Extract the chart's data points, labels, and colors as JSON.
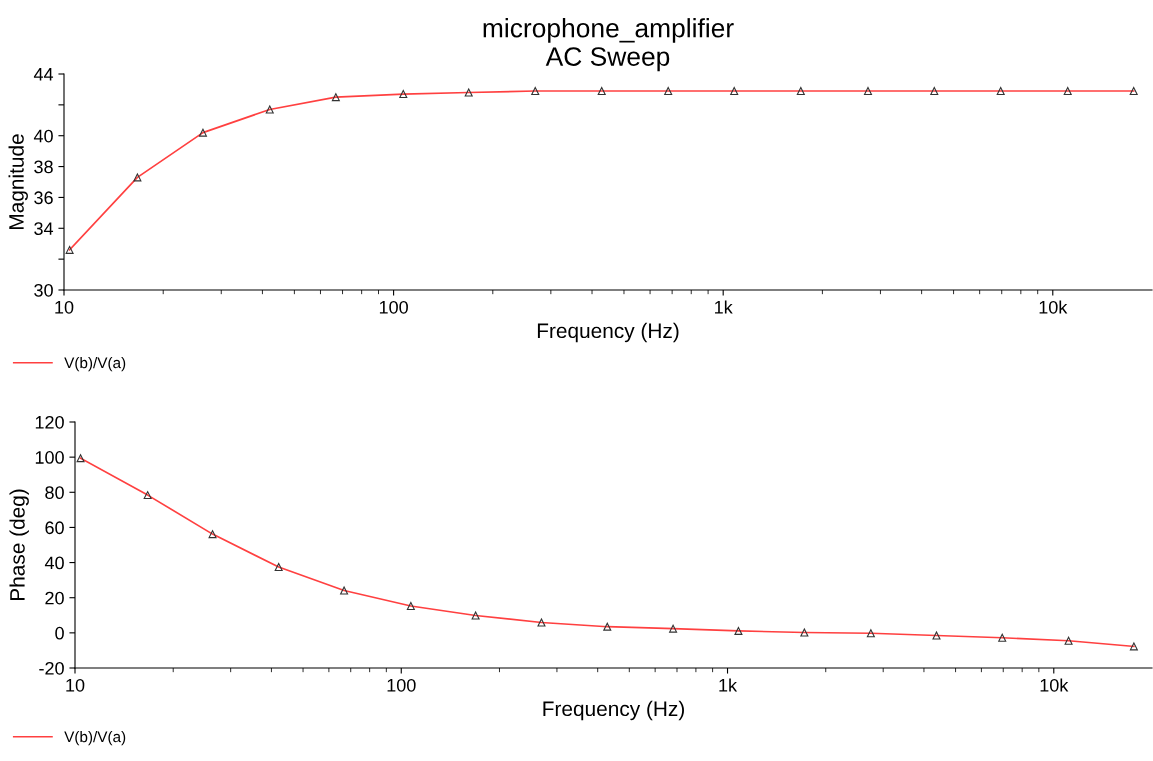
{
  "chart_data": [
    {
      "type": "line",
      "title": "microphone_amplifier",
      "subtitle": "AC Sweep",
      "xlabel": "Frequency (Hz)",
      "ylabel": "Magnitude",
      "log": "x",
      "grid": false,
      "legend": "bottom left",
      "marker": "triangle",
      "line_style": "solid",
      "x": [
        10.4,
        16.7,
        26.4,
        42.1,
        66.8,
        107,
        169,
        269,
        428,
        681,
        1080,
        1720,
        2750,
        4370,
        6950,
        11100,
        17600
      ],
      "xlim": [
        10,
        20000
      ],
      "xticks": [
        {
          "value": 10,
          "label": "10"
        },
        {
          "value": 100,
          "label": "100"
        },
        {
          "value": 1000,
          "label": "1k"
        },
        {
          "value": 10000,
          "label": "10k"
        }
      ],
      "ylim": [
        30,
        44
      ],
      "yticks": [
        30,
        {
          "value": 32,
          "label": null
        },
        34,
        36,
        38,
        40,
        {
          "value": 42,
          "label": null
        },
        44
      ],
      "series": [
        {
          "name": "V(b)/V(a)",
          "color": "#ff4040",
          "values": [
            32.6,
            37.3,
            40.2,
            41.7,
            42.5,
            42.7,
            42.8,
            42.9,
            42.9,
            42.9,
            42.9,
            42.9,
            42.9,
            42.9,
            42.9,
            42.9,
            42.9
          ]
        }
      ]
    },
    {
      "type": "line",
      "xlabel": "Frequency (Hz)",
      "ylabel": "Phase (deg)",
      "log": "x",
      "grid": false,
      "legend": "bottom left",
      "marker": "triangle",
      "line_style": "solid",
      "x": [
        10.4,
        16.7,
        26.4,
        42.1,
        66.8,
        107,
        169,
        269,
        428,
        681,
        1080,
        1720,
        2750,
        4370,
        6950,
        11100,
        17600
      ],
      "xlim": [
        10,
        20000
      ],
      "xticks": [
        {
          "value": 10,
          "label": "10"
        },
        {
          "value": 100,
          "label": "100"
        },
        {
          "value": 1000,
          "label": "1k"
        },
        {
          "value": 10000,
          "label": "10k"
        }
      ],
      "ylim": [
        -20,
        120
      ],
      "yticks": [
        -20,
        0,
        20,
        40,
        60,
        80,
        100,
        120
      ],
      "series": [
        {
          "name": "V(b)/V(a)",
          "color": "#ff4040",
          "values": [
            99.4,
            78.4,
            56.2,
            37.5,
            24.1,
            15.3,
            9.9,
            5.9,
            3.5,
            2.4,
            1.1,
            0.2,
            -0.2,
            -1.5,
            -2.8,
            -4.5,
            -7.7
          ]
        }
      ]
    }
  ]
}
